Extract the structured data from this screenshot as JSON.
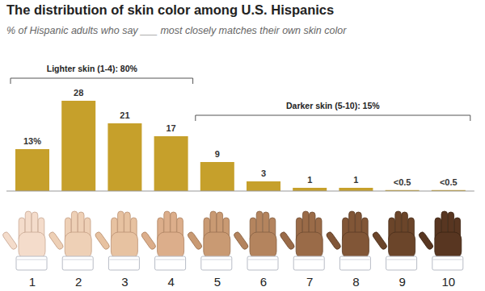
{
  "chart_data": {
    "type": "bar",
    "title": "The distribution of skin color among U.S. Hispanics",
    "subtitle": "% of Hispanic adults who say ___ most closely matches their own skin color",
    "categories": [
      "1",
      "2",
      "3",
      "4",
      "5",
      "6",
      "7",
      "8",
      "9",
      "10"
    ],
    "values": [
      13,
      28,
      21,
      17,
      9,
      3,
      1,
      1,
      0.3,
      0.3
    ],
    "value_labels": [
      "13%",
      "28",
      "21",
      "17",
      "9",
      "3",
      "1",
      "1",
      "<0.5",
      "<0.5"
    ],
    "color": "#c6a02b",
    "ylim": [
      0,
      30
    ],
    "data_labels": true,
    "tick_labels": "x",
    "annotations": [
      "Lighter skin (1-4): 80%",
      "Darker skin (5-10): 15%"
    ]
  }
}
